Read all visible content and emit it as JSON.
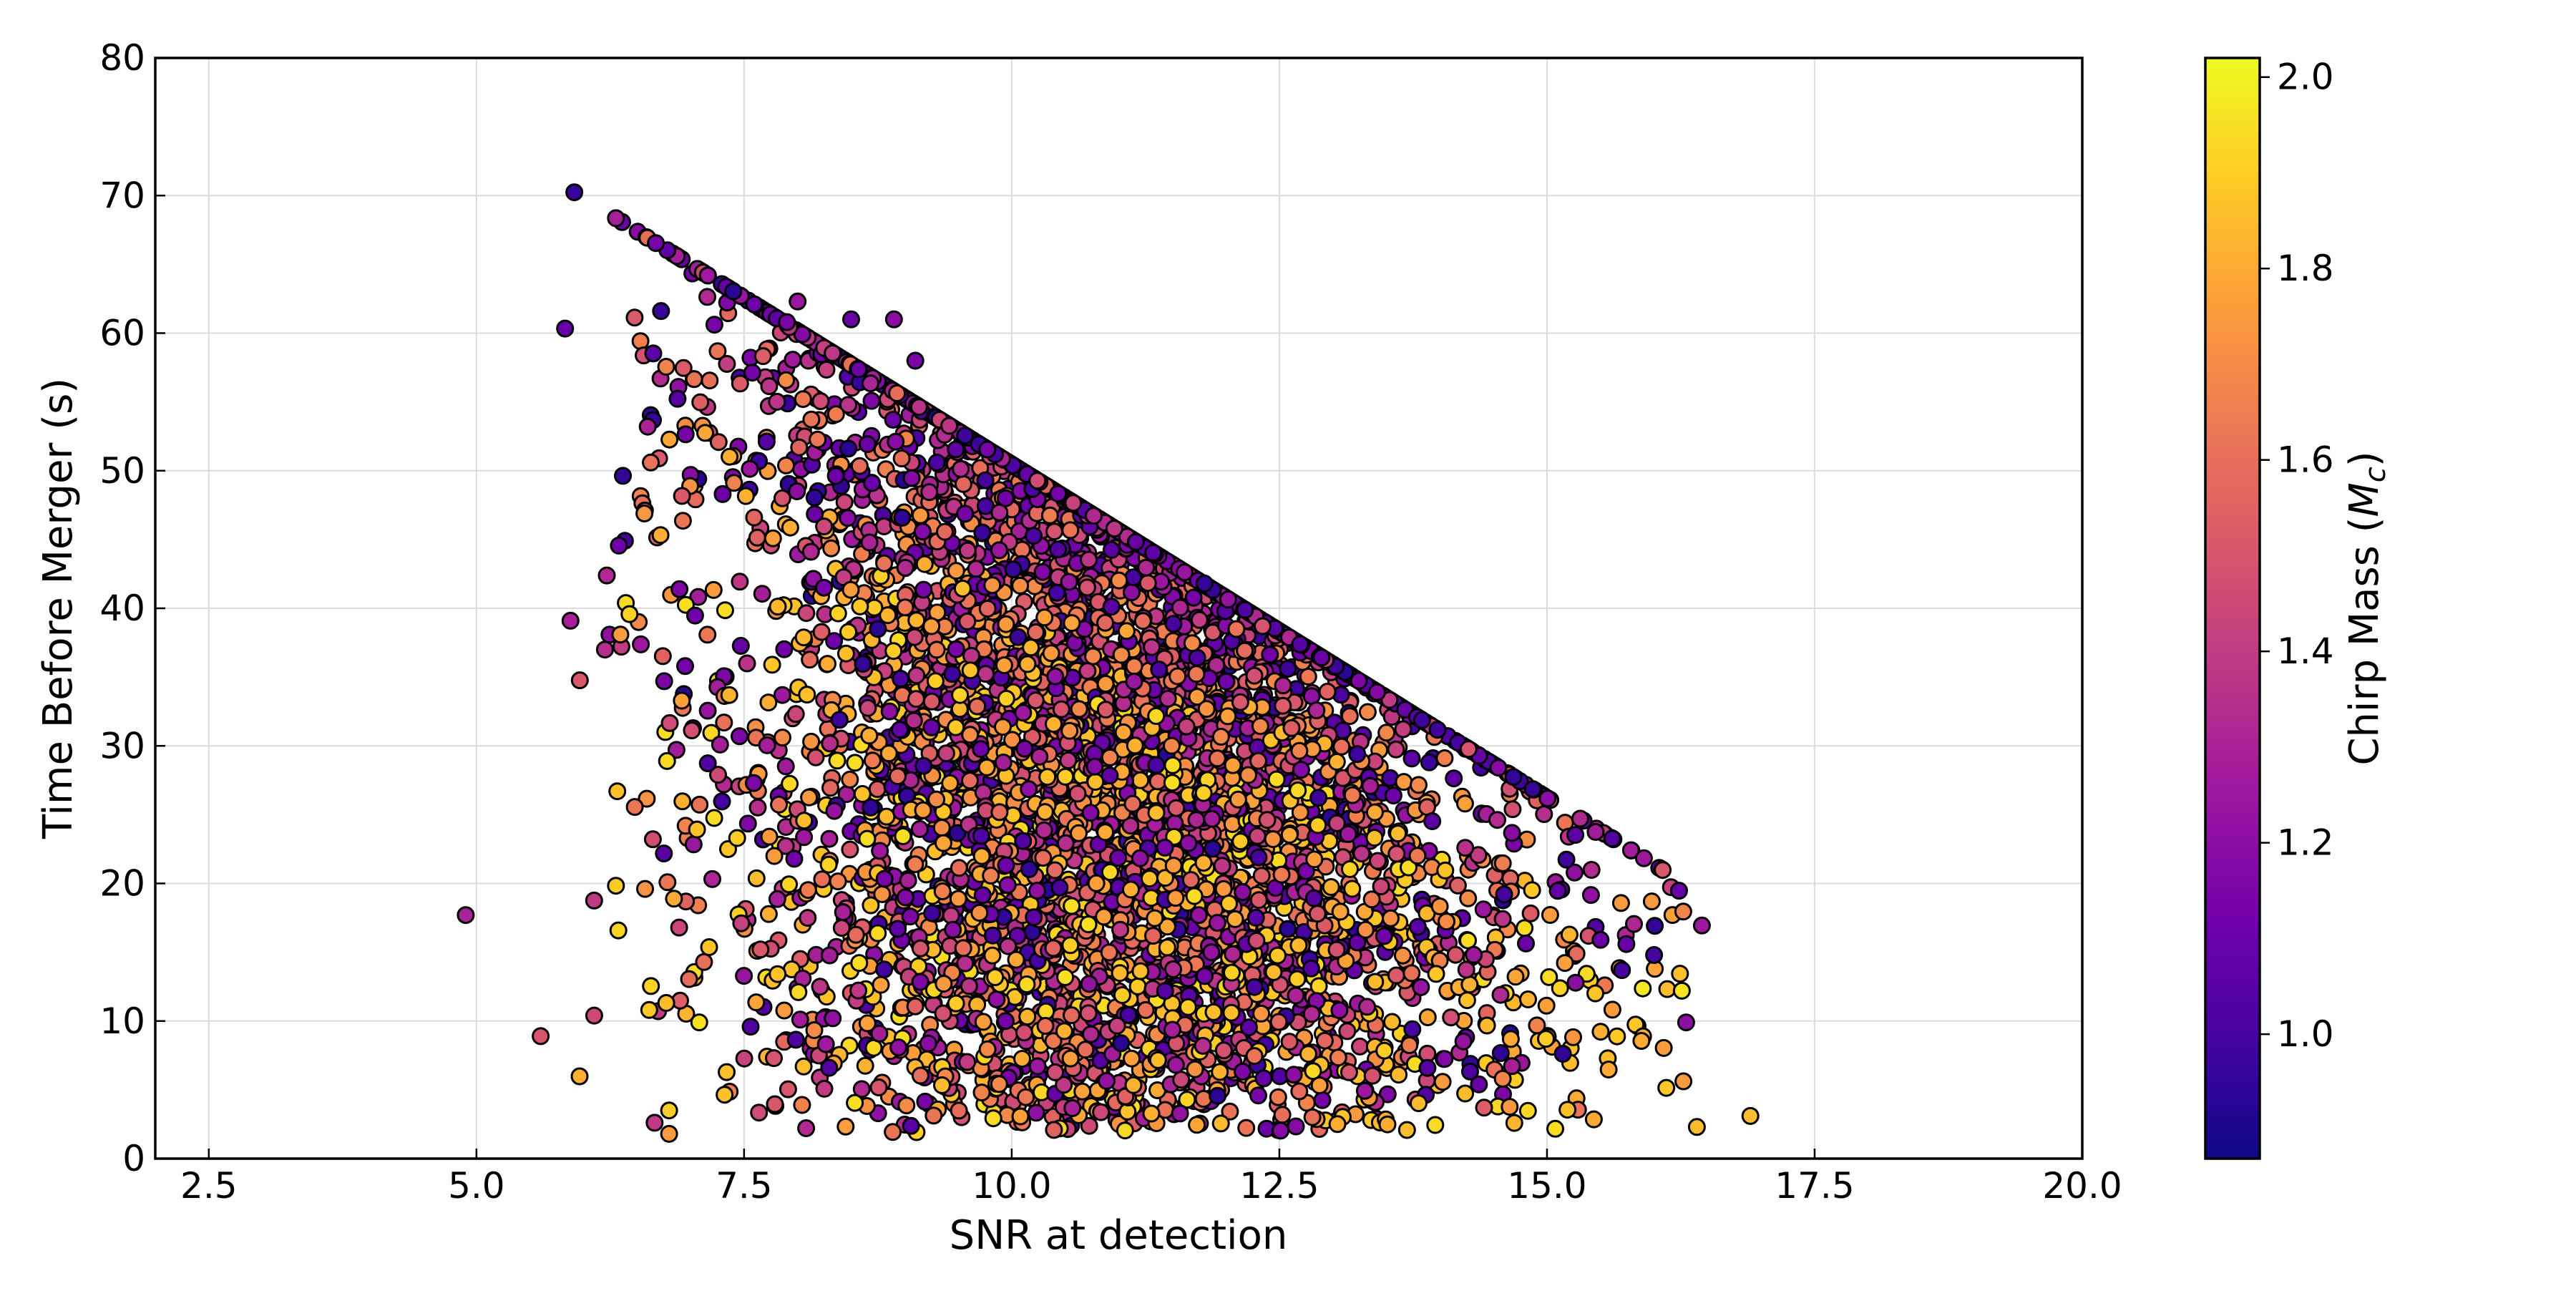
{
  "chart_data": {
    "type": "scatter",
    "xlabel": "SNR at detection",
    "ylabel": "Time Before Merger (s)",
    "xlim": [
      2.0,
      20.0
    ],
    "ylim": [
      0,
      80
    ],
    "xticks": [
      "2.5",
      "5.0",
      "7.5",
      "10.0",
      "12.5",
      "15.0",
      "17.5",
      "20.0"
    ],
    "yticks": [
      "0",
      "10",
      "20",
      "30",
      "40",
      "50",
      "60",
      "70",
      "80"
    ],
    "grid": true,
    "colorbar": {
      "label": "Chirp Mass (M_c)",
      "label_main": "Chirp Mass (",
      "label_symbol": "M",
      "label_subscript": "c",
      "label_close": ")",
      "range": [
        0.87,
        2.02
      ],
      "ticks": [
        "1.0",
        "1.2",
        "1.4",
        "1.6",
        "1.8",
        "2.0"
      ],
      "colormap": "plasma",
      "colormap_stops": [
        "#0d0887",
        "#46039f",
        "#7201a8",
        "#9c179e",
        "#bd3786",
        "#d8576b",
        "#ed7953",
        "#fb9f3a",
        "#fdca26",
        "#f0f921"
      ]
    },
    "series": [
      {
        "point_count_estimate": 6000,
        "sample_points": [
          {
            "snr": 4.9,
            "t": 17.7,
            "mc": 1.3
          },
          {
            "snr": 5.6,
            "t": 8.9,
            "mc": 1.5
          },
          {
            "snr": 6.1,
            "t": 10.4,
            "mc": 1.45
          },
          {
            "snr": 6.2,
            "t": 37.0,
            "mc": 1.35
          },
          {
            "snr": 6.6,
            "t": 53.2,
            "mc": 1.3
          },
          {
            "snr": 6.8,
            "t": 1.8,
            "mc": 1.75
          },
          {
            "snr": 6.8,
            "t": 3.5,
            "mc": 1.9
          },
          {
            "snr": 7.3,
            "t": 48.3,
            "mc": 1.1
          },
          {
            "snr": 7.9,
            "t": 60.8,
            "mc": 1.15
          },
          {
            "snr": 8.0,
            "t": 62.3,
            "mc": 1.25
          },
          {
            "snr": 8.5,
            "t": 61.0,
            "mc": 1.1
          },
          {
            "snr": 8.9,
            "t": 61.0,
            "mc": 1.2
          },
          {
            "snr": 9.1,
            "t": 58.0,
            "mc": 1.15
          },
          {
            "snr": 11.8,
            "t": 41.8,
            "mc": 0.95
          },
          {
            "snr": 13.9,
            "t": 28.8,
            "mc": 0.98
          },
          {
            "snr": 14.6,
            "t": 19.2,
            "mc": 1.0
          },
          {
            "snr": 15.5,
            "t": 15.9,
            "mc": 1.1
          },
          {
            "snr": 15.7,
            "t": 13.7,
            "mc": 1.0
          },
          {
            "snr": 16.0,
            "t": 14.8,
            "mc": 1.0
          },
          {
            "snr": 16.3,
            "t": 9.9,
            "mc": 1.2
          },
          {
            "snr": 16.4,
            "t": 2.3,
            "mc": 1.85
          },
          {
            "snr": 16.9,
            "t": 3.1,
            "mc": 1.85
          }
        ]
      }
    ]
  }
}
